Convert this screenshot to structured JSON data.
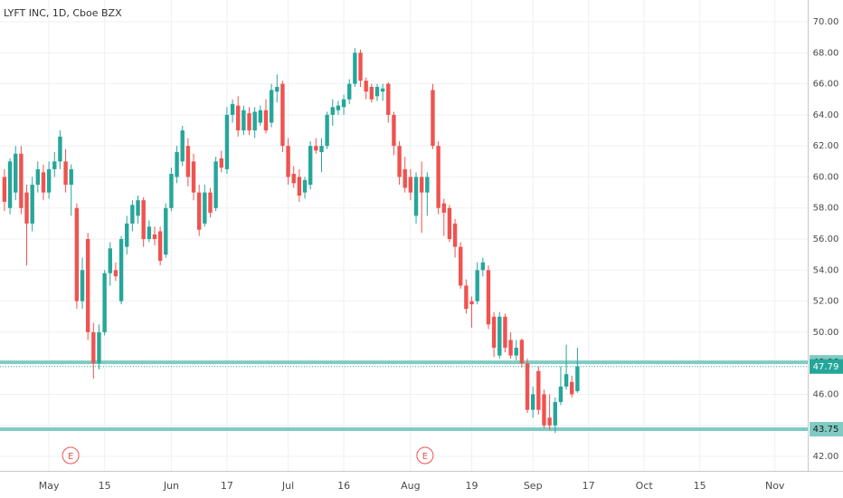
{
  "chart_data": {
    "type": "candlestick",
    "title": "LYFT INC, 1D, Cboe BZX",
    "up_color": "#26a69a",
    "down_color": "#ef5350",
    "grid": true,
    "xlim": [
      -0.8,
      144.4
    ],
    "ylim": [
      41.07,
      71.4
    ],
    "xticks": [
      {
        "value": 8,
        "label": "May"
      },
      {
        "value": 18,
        "label": "15"
      },
      {
        "value": 30,
        "label": "Jun"
      },
      {
        "value": 40,
        "label": "17"
      },
      {
        "value": 51,
        "label": "Jul"
      },
      {
        "value": 61,
        "label": "16"
      },
      {
        "value": 73,
        "label": "Aug"
      },
      {
        "value": 84,
        "label": "19"
      },
      {
        "value": 95,
        "label": "Sep"
      },
      {
        "value": 105,
        "label": "17"
      },
      {
        "value": 115,
        "label": "Oct"
      },
      {
        "value": 125,
        "label": "15"
      },
      {
        "value": 138.5,
        "label": "Nov"
      }
    ],
    "yticks": [
      {
        "value": 42,
        "label": "42.00"
      },
      {
        "value": 44,
        "label": "44.00"
      },
      {
        "value": 46,
        "label": "46.00"
      },
      {
        "value": 48,
        "label": "48.00"
      },
      {
        "value": 50,
        "label": "50.00"
      },
      {
        "value": 52,
        "label": "52.00"
      },
      {
        "value": 54,
        "label": "54.00"
      },
      {
        "value": 56,
        "label": "56.00"
      },
      {
        "value": 58,
        "label": "58.00"
      },
      {
        "value": 60,
        "label": "60.00"
      },
      {
        "value": 62,
        "label": "62.00"
      },
      {
        "value": 64,
        "label": "64.00"
      },
      {
        "value": 66,
        "label": "66.00"
      },
      {
        "value": 68,
        "label": "68.00"
      },
      {
        "value": 70,
        "label": "70.00"
      }
    ],
    "hlines": [
      {
        "value": 48.06,
        "color": "#80cbc4"
      },
      {
        "value": 43.75,
        "color": "#80cbc4"
      }
    ],
    "events": [
      {
        "x": 11.9,
        "label": "E"
      },
      {
        "x": 75.6,
        "label": "E"
      }
    ],
    "open": [
      60,
      58,
      59,
      61.5,
      59,
      57,
      59.5,
      60.3,
      59,
      60.5,
      61,
      61,
      59.5,
      58,
      52,
      56,
      50,
      48,
      50,
      53.8,
      54,
      52,
      55.5,
      57,
      57.5,
      58.5,
      56,
      56.3,
      56.5,
      55,
      58,
      60,
      61,
      62,
      61,
      59,
      57,
      59,
      58,
      61.2,
      60.5,
      64,
      64.6,
      63,
      64.1,
      63,
      63.5,
      64.3,
      63.5,
      65.5,
      66,
      62,
      60.2,
      60,
      59,
      59.5,
      62,
      61.6,
      62,
      64,
      64.3,
      64.5,
      65,
      66,
      68,
      66.2,
      65.8,
      65.2,
      65.5,
      66,
      64,
      62,
      60.5,
      60,
      57.5,
      60,
      59,
      65.6,
      62,
      58.3,
      58,
      57,
      55.5,
      53,
      52,
      52,
      54,
      54,
      51,
      48.5,
      51,
      49.5,
      48.5,
      49.5,
      48,
      45,
      47.5,
      46,
      44.5,
      44,
      45.5,
      46.5,
      46.8,
      46.2
    ],
    "high": [
      60.5,
      61.2,
      62,
      62,
      59.5,
      60,
      61,
      60.8,
      61,
      61.6,
      63,
      61.8,
      60.8,
      58.3,
      54.8,
      56.4,
      50.6,
      50.5,
      54,
      55.8,
      54.5,
      56.2,
      57.5,
      58.5,
      58.8,
      58.7,
      57.2,
      56.8,
      56.8,
      58.3,
      60.6,
      62,
      63.3,
      62.5,
      61.5,
      59.5,
      59.5,
      59.3,
      61.3,
      61.7,
      64.5,
      65,
      65.2,
      64.6,
      64.5,
      64.5,
      64.6,
      65,
      66,
      66.6,
      66.2,
      62.5,
      60.7,
      60.5,
      60,
      62.3,
      62.5,
      62.5,
      64.2,
      65,
      64.9,
      65.3,
      66.3,
      68.3,
      68.2,
      66.4,
      66,
      66,
      66,
      66.1,
      64.2,
      62.3,
      61.3,
      60.5,
      60.3,
      61,
      60.3,
      66,
      62.3,
      58.6,
      58.2,
      57.3,
      55.8,
      53.4,
      52.3,
      54.5,
      54.8,
      54.3,
      51.3,
      51.3,
      51.2,
      50,
      49.5,
      49.6,
      48.3,
      46.5,
      47.8,
      46.3,
      46,
      45.8,
      47.8,
      49.2,
      47.2,
      49
    ],
    "low": [
      57.8,
      57.6,
      58.5,
      57.6,
      54.3,
      56.5,
      59,
      58.5,
      58.6,
      60,
      60.5,
      59,
      57.5,
      51.5,
      51.5,
      49.5,
      47,
      47.6,
      49.8,
      53,
      53.3,
      51.8,
      55,
      56.5,
      57,
      55.5,
      55.8,
      55.6,
      54.3,
      54.8,
      57.8,
      59.6,
      60.7,
      59.4,
      58.5,
      56.2,
      56.8,
      57.4,
      57.8,
      60.3,
      60.2,
      63.5,
      62.6,
      62.7,
      62.7,
      62.5,
      63.3,
      62.8,
      63.2,
      64.8,
      61.6,
      59.5,
      59.3,
      58.4,
      58.6,
      59.2,
      61.5,
      60.3,
      61.8,
      63.3,
      64,
      64,
      64.7,
      65.8,
      65.8,
      65,
      64.8,
      64.9,
      64.9,
      63.5,
      61.4,
      59.5,
      59,
      58.5,
      57,
      56.4,
      57.5,
      61.8,
      57.6,
      56.2,
      55.8,
      54.8,
      52.8,
      51.2,
      50.3,
      51.8,
      53.6,
      50.2,
      48.4,
      48.3,
      48.7,
      48.3,
      48.2,
      47.7,
      44.8,
      44.5,
      44.7,
      43.8,
      43.7,
      43.5,
      45.3,
      46.3,
      45.8,
      46.1
    ],
    "close": [
      58.4,
      61,
      61.5,
      58,
      57,
      59.5,
      60.5,
      59,
      60.5,
      61,
      62.6,
      59.5,
      60.5,
      52,
      54,
      50,
      48,
      50,
      53.8,
      55.4,
      53.6,
      56,
      57,
      58.2,
      58.5,
      56,
      56.8,
      56,
      54.6,
      58,
      60.2,
      61.6,
      63,
      60,
      59,
      56.6,
      59,
      57.7,
      61,
      60.6,
      64,
      64.7,
      63,
      64.3,
      63,
      64.2,
      64.3,
      63,
      65.6,
      65.8,
      62,
      60,
      59.6,
      58.8,
      59.8,
      62,
      61.7,
      62,
      64,
      64.5,
      64.6,
      65,
      66,
      68,
      66.2,
      65.5,
      65,
      65.8,
      65.7,
      64,
      62,
      60,
      59.3,
      59,
      60,
      59,
      60,
      62,
      58,
      57.7,
      56,
      55.5,
      53,
      51.5,
      51.8,
      54,
      54.5,
      50.5,
      49,
      51,
      49,
      48.5,
      49,
      48,
      45,
      46,
      45,
      44,
      44,
      45.5,
      46.5,
      47.3,
      46,
      47.79
    ]
  }
}
